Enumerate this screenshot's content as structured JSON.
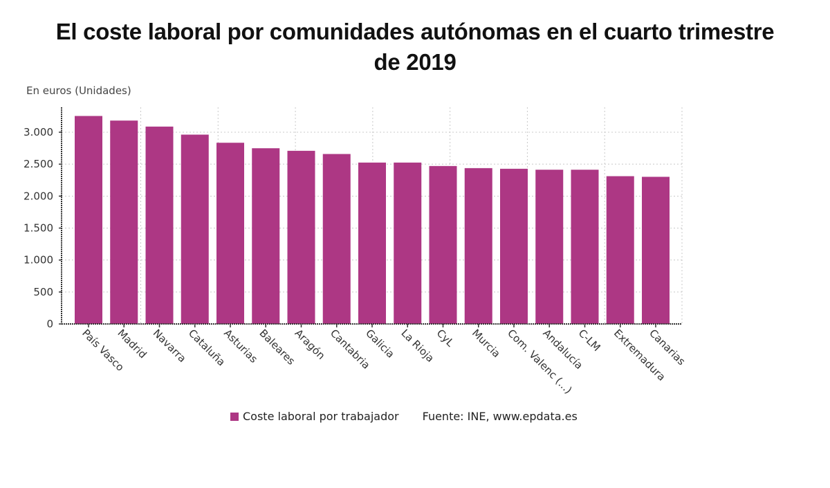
{
  "title": "El coste laboral por comunidades autónomas en el cuarto trimestre de 2019",
  "title_line1": "El coste laboral por comunidades autónomas en el cuarto trimestre",
  "title_line2": "de 2019",
  "unit_label": "En euros (Unidades)",
  "legend": {
    "series_label": "Coste laboral por trabajador",
    "source": "Fuente: INE, www.epdata.es"
  },
  "colors": {
    "bar": "#ad3784",
    "grid": "#c8c8c8",
    "axis": "#333333"
  },
  "chart_data": {
    "type": "bar",
    "title": "El coste laboral por comunidades autónomas en el cuarto trimestre de 2019",
    "xlabel": "",
    "ylabel": "En euros (Unidades)",
    "ylim": [
      0,
      3400
    ],
    "yticks": [
      0,
      500,
      1000,
      1500,
      2000,
      2500,
      3000
    ],
    "ytick_labels": [
      "0",
      "500",
      "1.000",
      "1.500",
      "2.000",
      "2.500",
      "3.000"
    ],
    "grid": true,
    "legend_position": "bottom",
    "categories": [
      "País Vasco",
      "Madrid",
      "Navarra",
      "Cataluña",
      "Asturias",
      "Baleares",
      "Aragón",
      "Cantabria",
      "Galicia",
      "La Rioja",
      "CyL",
      "Murcia",
      "Com. Valenc (...)",
      "Andalucía",
      "C-LM",
      "Extremadura",
      "Canarias"
    ],
    "series": [
      {
        "name": "Coste laboral por trabajador",
        "values": [
          3254,
          3182,
          3088,
          2962,
          2835,
          2749,
          2709,
          2659,
          2525,
          2525,
          2471,
          2438,
          2428,
          2413,
          2413,
          2312,
          2302
        ]
      }
    ]
  }
}
